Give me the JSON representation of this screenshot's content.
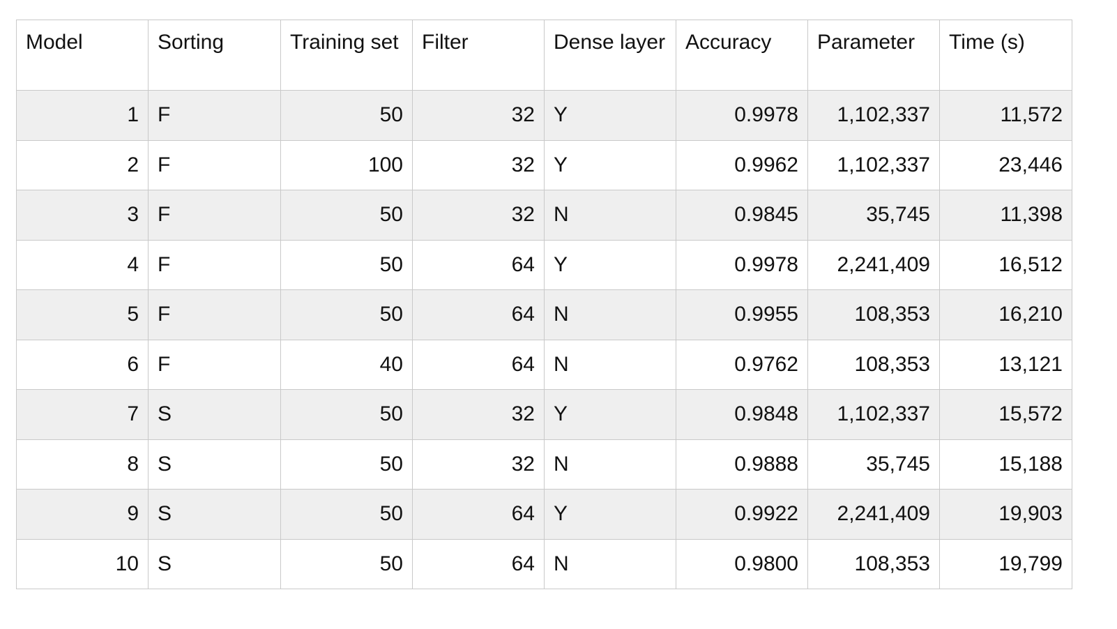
{
  "table": {
    "headers": [
      "Model",
      "Sorting",
      "Training set",
      "Filter",
      "Dense layer",
      "Accuracy",
      "Parameter",
      "Time (s)"
    ],
    "rows": [
      [
        "1",
        "F",
        "50",
        "32",
        "Y",
        "0.9978",
        "1,102,337",
        "11,572"
      ],
      [
        "2",
        "F",
        "100",
        "32",
        "Y",
        "0.9962",
        "1,102,337",
        "23,446"
      ],
      [
        "3",
        "F",
        "50",
        "32",
        "N",
        "0.9845",
        "35,745",
        "11,398"
      ],
      [
        "4",
        "F",
        "50",
        "64",
        "Y",
        "0.9978",
        "2,241,409",
        "16,512"
      ],
      [
        "5",
        "F",
        "50",
        "64",
        "N",
        "0.9955",
        "108,353",
        "16,210"
      ],
      [
        "6",
        "F",
        "40",
        "64",
        "N",
        "0.9762",
        "108,353",
        "13,121"
      ],
      [
        "7",
        "S",
        "50",
        "32",
        "Y",
        "0.9848",
        "1,102,337",
        "15,572"
      ],
      [
        "8",
        "S",
        "50",
        "32",
        "N",
        "0.9888",
        "35,745",
        "15,188"
      ],
      [
        "9",
        "S",
        "50",
        "64",
        "Y",
        "0.9922",
        "2,241,409",
        "19,903"
      ],
      [
        "10",
        "S",
        "50",
        "64",
        "N",
        "0.9800",
        "108,353",
        "19,799"
      ]
    ]
  }
}
